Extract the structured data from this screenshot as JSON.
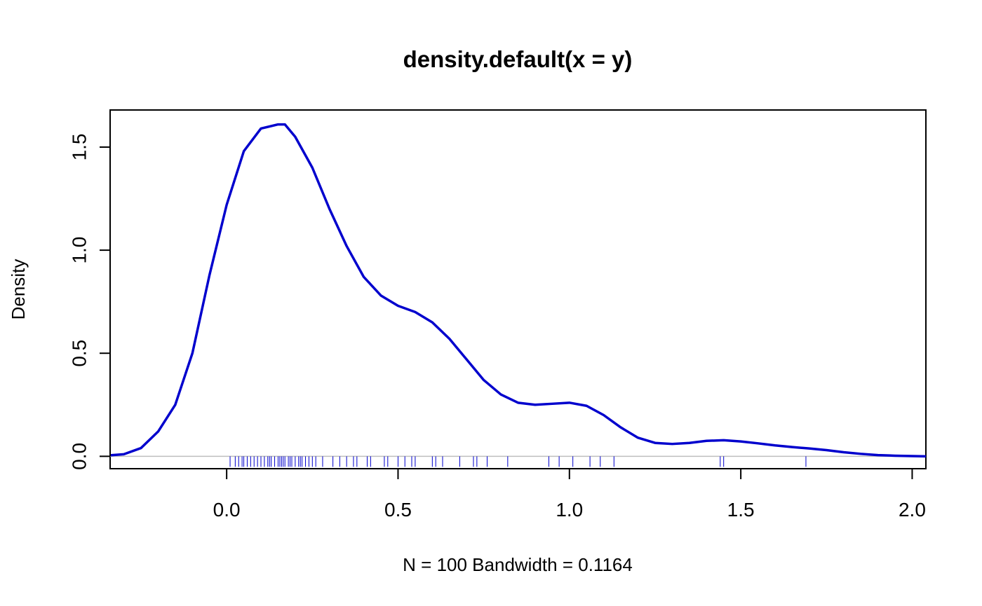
{
  "chart_data": {
    "type": "line",
    "title": "density.default(x = y)",
    "xlabel": "N = 100   Bandwidth = 0.1164",
    "ylabel": "Density",
    "xlim": [
      -0.34,
      2.04
    ],
    "ylim": [
      -0.06,
      1.68
    ],
    "x_ticks": [
      0.0,
      0.5,
      1.0,
      1.5,
      2.0
    ],
    "x_tick_labels": [
      "0.0",
      "0.5",
      "1.0",
      "1.5",
      "2.0"
    ],
    "y_ticks": [
      0.0,
      0.5,
      1.0,
      1.5
    ],
    "y_tick_labels": [
      "0.0",
      "0.5",
      "1.0",
      "1.5"
    ],
    "zero_line": true,
    "line_color": "#0000cd",
    "rug_color": "#0000cd",
    "zero_line_color": "#bebebe",
    "series": [
      {
        "x": [
          -0.34,
          -0.3,
          -0.25,
          -0.2,
          -0.15,
          -0.1,
          -0.05,
          0.0,
          0.05,
          0.1,
          0.15,
          0.17,
          0.2,
          0.25,
          0.3,
          0.35,
          0.4,
          0.45,
          0.5,
          0.55,
          0.6,
          0.65,
          0.7,
          0.75,
          0.8,
          0.85,
          0.9,
          0.95,
          1.0,
          1.05,
          1.1,
          1.15,
          1.2,
          1.25,
          1.3,
          1.35,
          1.4,
          1.45,
          1.5,
          1.55,
          1.6,
          1.65,
          1.7,
          1.75,
          1.8,
          1.85,
          1.9,
          1.95,
          2.0,
          2.04
        ],
        "y": [
          0.005,
          0.01,
          0.04,
          0.12,
          0.25,
          0.5,
          0.88,
          1.22,
          1.48,
          1.59,
          1.61,
          1.61,
          1.55,
          1.4,
          1.2,
          1.02,
          0.87,
          0.78,
          0.73,
          0.7,
          0.65,
          0.57,
          0.47,
          0.37,
          0.3,
          0.26,
          0.25,
          0.255,
          0.26,
          0.245,
          0.2,
          0.14,
          0.09,
          0.065,
          0.06,
          0.065,
          0.075,
          0.078,
          0.072,
          0.063,
          0.053,
          0.045,
          0.038,
          0.03,
          0.02,
          0.012,
          0.006,
          0.003,
          0.001,
          0.0
        ]
      }
    ],
    "rug": [
      0.01,
      0.025,
      0.035,
      0.045,
      0.05,
      0.06,
      0.07,
      0.08,
      0.09,
      0.1,
      0.11,
      0.12,
      0.125,
      0.13,
      0.14,
      0.15,
      0.155,
      0.16,
      0.165,
      0.17,
      0.18,
      0.185,
      0.19,
      0.2,
      0.21,
      0.215,
      0.22,
      0.23,
      0.24,
      0.25,
      0.26,
      0.28,
      0.31,
      0.33,
      0.35,
      0.37,
      0.38,
      0.41,
      0.42,
      0.46,
      0.47,
      0.5,
      0.52,
      0.54,
      0.55,
      0.6,
      0.61,
      0.63,
      0.68,
      0.72,
      0.73,
      0.76,
      0.82,
      0.94,
      0.97,
      1.01,
      1.06,
      1.09,
      1.13,
      1.44,
      1.45,
      1.69
    ]
  }
}
